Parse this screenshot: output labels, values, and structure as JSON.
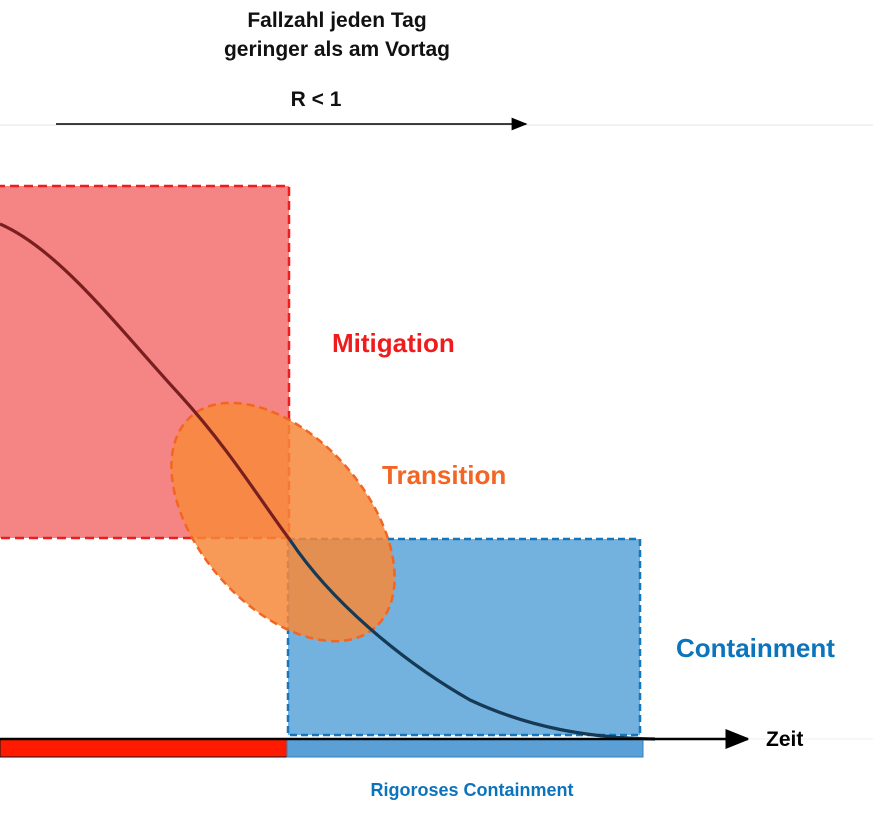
{
  "header": {
    "line1": "Fallzahl jeden Tag",
    "line2": "geringer als am Vortag",
    "r_label": "R < 1"
  },
  "zones": {
    "mitigation": {
      "label": "Mitigation",
      "color": "#ee1c1c",
      "fill": "#f47b7b"
    },
    "transition": {
      "label": "Transition",
      "color": "#f26522",
      "fill": "#f7883a"
    },
    "containment": {
      "label": "Containment",
      "color": "#0070b8",
      "fill": "#6baedd"
    }
  },
  "axis": {
    "x_label": "Zeit"
  },
  "bottom_bar": {
    "label": "Rigoroses Containment",
    "left_color": "#ff1a00",
    "right_color": "#5aa0d6"
  },
  "curve": {
    "color": "#7a1f1f"
  }
}
